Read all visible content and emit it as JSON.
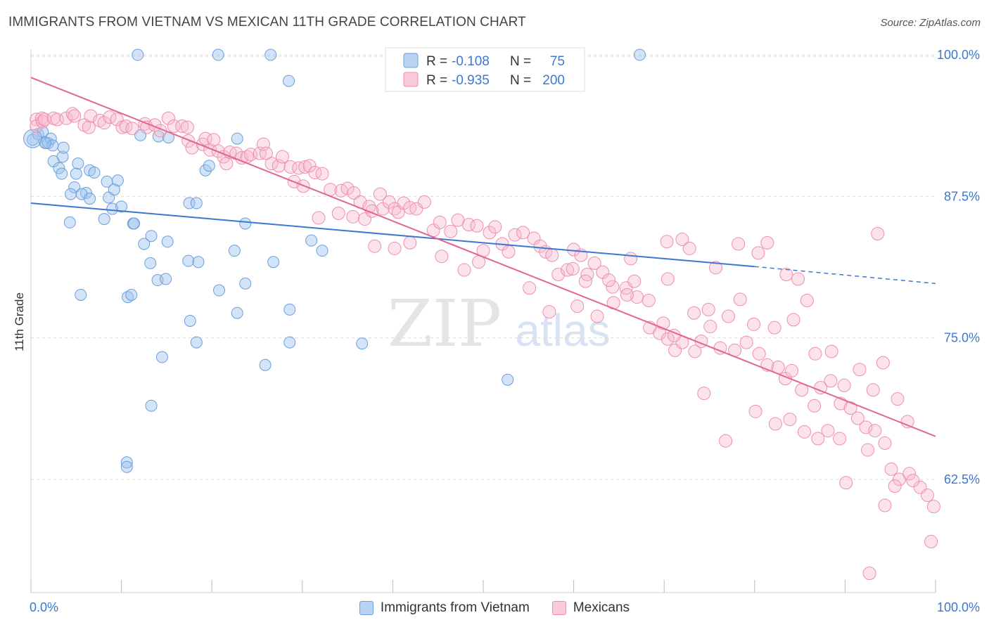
{
  "title": "IMMIGRANTS FROM VIETNAM VS MEXICAN 11TH GRADE CORRELATION CHART",
  "source": "Source: ZipAtlas.com",
  "watermark": {
    "zip": "ZIP",
    "atlas": "atlas"
  },
  "colors": {
    "vietnam_fill": "#9ec4f0",
    "vietnam_stroke": "#6d9fd8",
    "vietnam_line": "#3b78cf",
    "mexican_fill": "#f7b9cd",
    "mexican_stroke": "#ec8faf",
    "mexican_line": "#e36492",
    "tick_label": "#3b78cf",
    "grid": "#dcdcdc"
  },
  "legend": {
    "vietnam": {
      "r_label": "R =",
      "r_value": "-0.108",
      "n_label": "N =",
      "n_value": "75"
    },
    "mexican": {
      "r_label": "R =",
      "r_value": "-0.935",
      "n_label": "N =",
      "n_value": "200"
    }
  },
  "chart_data": {
    "type": "scatter",
    "title": "IMMIGRANTS FROM VIETNAM VS MEXICAN 11TH GRADE CORRELATION CHART",
    "xlabel": "",
    "ylabel": "11th Grade",
    "xlim": [
      0,
      100
    ],
    "ylim": [
      52.5,
      100.5
    ],
    "x_tick_labels": [
      "0.0%",
      "100.0%"
    ],
    "y_ticks": [
      62.5,
      75.0,
      87.5,
      100.0
    ],
    "y_tick_labels": [
      "62.5%",
      "75.0%",
      "87.5%",
      "100.0%"
    ],
    "grid": "horizontal dashed",
    "legend_position": "top-center",
    "series": [
      {
        "name": "Immigrants from Vietnam",
        "color": "#9ec4f0",
        "points": [
          [
            11.8,
            100
          ],
          [
            20.7,
            100
          ],
          [
            26.5,
            100
          ],
          [
            67.3,
            100
          ],
          [
            28.5,
            97.7
          ],
          [
            0.2,
            92.5
          ],
          [
            0.8,
            93.0
          ],
          [
            1.3,
            93.2
          ],
          [
            1.5,
            92.3
          ],
          [
            1.9,
            92.2
          ],
          [
            2.2,
            92.6
          ],
          [
            2.4,
            92.0
          ],
          [
            3.5,
            91.0
          ],
          [
            2.5,
            90.6
          ],
          [
            3.1,
            90.0
          ],
          [
            3.4,
            89.5
          ],
          [
            5.2,
            90.4
          ],
          [
            5.0,
            89.5
          ],
          [
            6.5,
            89.8
          ],
          [
            7.0,
            89.6
          ],
          [
            8.4,
            88.8
          ],
          [
            9.6,
            88.9
          ],
          [
            4.8,
            88.3
          ],
          [
            6.1,
            87.8
          ],
          [
            4.4,
            87.7
          ],
          [
            5.6,
            87.7
          ],
          [
            8.6,
            87.4
          ],
          [
            9.2,
            88.1
          ],
          [
            6.5,
            87.3
          ],
          [
            1.6,
            92.2
          ],
          [
            3.6,
            91.8
          ],
          [
            9.0,
            86.4
          ],
          [
            10.0,
            86.6
          ],
          [
            4.3,
            85.2
          ],
          [
            8.1,
            85.5
          ],
          [
            11.3,
            85.1
          ],
          [
            11.4,
            85.1
          ],
          [
            17.5,
            86.9
          ],
          [
            18.3,
            86.9
          ],
          [
            19.3,
            89.8
          ],
          [
            19.7,
            90.2
          ],
          [
            12.1,
            92.9
          ],
          [
            14.1,
            92.8
          ],
          [
            15.2,
            92.7
          ],
          [
            22.8,
            92.6
          ],
          [
            12.5,
            83.3
          ],
          [
            13.3,
            84.0
          ],
          [
            15.1,
            83.5
          ],
          [
            22.5,
            82.7
          ],
          [
            23.7,
            85.1
          ],
          [
            31.0,
            83.6
          ],
          [
            32.2,
            82.7
          ],
          [
            17.4,
            81.8
          ],
          [
            18.5,
            81.7
          ],
          [
            14.0,
            80.1
          ],
          [
            14.9,
            80.2
          ],
          [
            13.2,
            81.6
          ],
          [
            23.7,
            79.8
          ],
          [
            26.8,
            81.7
          ],
          [
            5.5,
            78.8
          ],
          [
            10.7,
            78.6
          ],
          [
            11.1,
            78.8
          ],
          [
            20.8,
            79.2
          ],
          [
            17.6,
            76.5
          ],
          [
            28.6,
            77.5
          ],
          [
            22.8,
            77.2
          ],
          [
            18.3,
            74.6
          ],
          [
            28.6,
            74.6
          ],
          [
            36.6,
            74.5
          ],
          [
            14.5,
            73.3
          ],
          [
            25.9,
            72.6
          ],
          [
            13.3,
            69.0
          ],
          [
            10.6,
            64.0
          ],
          [
            10.6,
            63.6
          ],
          [
            52.7,
            71.3
          ]
        ]
      },
      {
        "name": "Mexicans",
        "color": "#f7b9cd",
        "points": [
          [
            0.6,
            94.3
          ],
          [
            0.6,
            93.7
          ],
          [
            1.2,
            94.4
          ],
          [
            1.3,
            94.1
          ],
          [
            1.5,
            94.3
          ],
          [
            2.5,
            94.4
          ],
          [
            2.9,
            94.3
          ],
          [
            3.9,
            94.4
          ],
          [
            4.6,
            94.8
          ],
          [
            4.8,
            94.6
          ],
          [
            5.9,
            93.8
          ],
          [
            6.4,
            93.6
          ],
          [
            6.6,
            94.6
          ],
          [
            7.6,
            94.2
          ],
          [
            8.1,
            94.0
          ],
          [
            8.7,
            94.5
          ],
          [
            9.5,
            94.3
          ],
          [
            10.1,
            93.6
          ],
          [
            10.5,
            93.7
          ],
          [
            11.2,
            93.5
          ],
          [
            12.6,
            93.9
          ],
          [
            12.8,
            93.6
          ],
          [
            13.7,
            93.8
          ],
          [
            14.3,
            93.3
          ],
          [
            15.2,
            94.4
          ],
          [
            15.8,
            93.7
          ],
          [
            16.7,
            93.7
          ],
          [
            17.3,
            93.6
          ],
          [
            17.4,
            92.4
          ],
          [
            17.8,
            91.8
          ],
          [
            19.0,
            92.1
          ],
          [
            19.3,
            92.6
          ],
          [
            19.8,
            91.6
          ],
          [
            20.2,
            92.5
          ],
          [
            20.7,
            91.5
          ],
          [
            21.3,
            91.0
          ],
          [
            21.6,
            90.4
          ],
          [
            22.0,
            91.4
          ],
          [
            22.7,
            91.3
          ],
          [
            23.3,
            90.9
          ],
          [
            23.9,
            91.0
          ],
          [
            24.3,
            91.2
          ],
          [
            25.3,
            91.3
          ],
          [
            25.7,
            92.1
          ],
          [
            26.0,
            91.3
          ],
          [
            26.6,
            90.4
          ],
          [
            27.4,
            90.2
          ],
          [
            27.8,
            91.0
          ],
          [
            28.7,
            90.1
          ],
          [
            29.6,
            90.0
          ],
          [
            30.3,
            90.1
          ],
          [
            30.8,
            90.2
          ],
          [
            29.1,
            88.8
          ],
          [
            30.1,
            88.4
          ],
          [
            31.4,
            89.6
          ],
          [
            32.2,
            89.5
          ],
          [
            33.1,
            88.1
          ],
          [
            34.3,
            88.0
          ],
          [
            35.0,
            88.2
          ],
          [
            35.7,
            87.8
          ],
          [
            36.4,
            87.0
          ],
          [
            37.4,
            86.6
          ],
          [
            38.6,
            87.7
          ],
          [
            38.9,
            86.4
          ],
          [
            39.6,
            87.0
          ],
          [
            40.2,
            86.4
          ],
          [
            40.6,
            86.1
          ],
          [
            41.2,
            86.9
          ],
          [
            41.9,
            86.5
          ],
          [
            42.6,
            86.4
          ],
          [
            43.5,
            87.0
          ],
          [
            44.5,
            84.5
          ],
          [
            45.2,
            85.2
          ],
          [
            46.4,
            84.4
          ],
          [
            47.2,
            85.4
          ],
          [
            48.4,
            85.0
          ],
          [
            49.3,
            84.9
          ],
          [
            50.0,
            82.7
          ],
          [
            50.7,
            84.3
          ],
          [
            51.3,
            84.8
          ],
          [
            52.1,
            83.3
          ],
          [
            52.8,
            82.6
          ],
          [
            53.5,
            84.1
          ],
          [
            54.4,
            84.3
          ],
          [
            55.6,
            83.8
          ],
          [
            56.3,
            83.1
          ],
          [
            56.9,
            82.6
          ],
          [
            57.6,
            82.3
          ],
          [
            58.3,
            80.6
          ],
          [
            59.3,
            81.0
          ],
          [
            60.0,
            82.8
          ],
          [
            60.8,
            82.3
          ],
          [
            61.5,
            80.6
          ],
          [
            62.3,
            81.6
          ],
          [
            63.2,
            80.8
          ],
          [
            64.3,
            79.5
          ],
          [
            65.8,
            79.4
          ],
          [
            66.7,
            80.0
          ],
          [
            67.0,
            78.6
          ],
          [
            68.4,
            75.9
          ],
          [
            69.5,
            75.4
          ],
          [
            70.4,
            74.9
          ],
          [
            71.2,
            73.9
          ],
          [
            72.0,
            74.6
          ],
          [
            73.4,
            73.8
          ],
          [
            74.1,
            74.7
          ],
          [
            75.1,
            76.0
          ],
          [
            76.2,
            74.1
          ],
          [
            77.8,
            73.9
          ],
          [
            79.1,
            74.6
          ],
          [
            80.5,
            73.6
          ],
          [
            81.4,
            72.6
          ],
          [
            82.6,
            72.4
          ],
          [
            83.4,
            71.4
          ],
          [
            84.1,
            72.1
          ],
          [
            85.2,
            70.4
          ],
          [
            86.6,
            69.0
          ],
          [
            87.3,
            70.6
          ],
          [
            88.4,
            71.2
          ],
          [
            89.5,
            69.2
          ],
          [
            90.6,
            68.8
          ],
          [
            91.4,
            67.9
          ],
          [
            92.3,
            67.1
          ],
          [
            93.3,
            66.8
          ],
          [
            94.4,
            65.7
          ],
          [
            95.1,
            63.4
          ],
          [
            96.0,
            62.5
          ],
          [
            97.1,
            63.0
          ],
          [
            98.3,
            61.8
          ],
          [
            99.1,
            61.1
          ],
          [
            99.8,
            60.1
          ],
          [
            99.5,
            57.0
          ],
          [
            92.7,
            54.2
          ],
          [
            64.4,
            78.1
          ],
          [
            65.9,
            78.8
          ],
          [
            55.1,
            79.4
          ],
          [
            57.3,
            77.3
          ],
          [
            60.4,
            77.8
          ],
          [
            62.6,
            76.9
          ],
          [
            68.3,
            78.3
          ],
          [
            69.9,
            76.3
          ],
          [
            71.1,
            75.2
          ],
          [
            73.3,
            77.2
          ],
          [
            74.9,
            77.5
          ],
          [
            77.1,
            76.9
          ],
          [
            78.4,
            78.4
          ],
          [
            79.9,
            76.2
          ],
          [
            82.2,
            75.9
          ],
          [
            84.3,
            76.6
          ],
          [
            86.7,
            73.6
          ],
          [
            88.5,
            73.8
          ],
          [
            89.9,
            70.8
          ],
          [
            91.6,
            72.2
          ],
          [
            93.1,
            70.4
          ],
          [
            94.2,
            72.8
          ],
          [
            95.8,
            69.6
          ],
          [
            96.9,
            67.6
          ],
          [
            74.4,
            70.1
          ],
          [
            76.8,
            65.9
          ],
          [
            80.1,
            68.5
          ],
          [
            82.3,
            67.4
          ],
          [
            83.9,
            67.8
          ],
          [
            85.5,
            66.7
          ],
          [
            87.0,
            66.1
          ],
          [
            88.1,
            66.8
          ],
          [
            89.4,
            66.1
          ],
          [
            90.1,
            62.2
          ],
          [
            92.5,
            65.1
          ],
          [
            94.4,
            60.2
          ],
          [
            95.5,
            61.9
          ],
          [
            97.5,
            62.4
          ],
          [
            80.4,
            82.5
          ],
          [
            83.5,
            80.6
          ],
          [
            84.8,
            80.2
          ],
          [
            85.8,
            78.3
          ],
          [
            70.3,
            83.5
          ],
          [
            72.0,
            83.7
          ],
          [
            78.2,
            83.3
          ],
          [
            81.4,
            83.4
          ],
          [
            93.6,
            84.2
          ],
          [
            38.0,
            83.1
          ],
          [
            40.2,
            82.9
          ],
          [
            41.9,
            83.4
          ],
          [
            45.4,
            82.2
          ],
          [
            47.9,
            81.0
          ],
          [
            49.5,
            81.7
          ],
          [
            59.9,
            81.1
          ],
          [
            61.3,
            80.0
          ],
          [
            63.9,
            80.1
          ],
          [
            66.3,
            82.0
          ],
          [
            70.4,
            80.2
          ],
          [
            72.8,
            82.9
          ],
          [
            75.7,
            81.2
          ],
          [
            31.8,
            85.6
          ],
          [
            34.0,
            86.0
          ],
          [
            35.6,
            85.7
          ],
          [
            36.9,
            85.5
          ],
          [
            37.7,
            86.2
          ]
        ]
      }
    ],
    "trendlines": [
      {
        "series": "Immigrants from Vietnam",
        "x": [
          0,
          80
        ],
        "y": [
          86.9,
          81.3
        ],
        "dashed_extension_to": [
          100,
          79.8
        ]
      },
      {
        "series": "Mexicans",
        "x": [
          0,
          100
        ],
        "y": [
          98.0,
          66.3
        ]
      }
    ]
  },
  "bottom_legend": [
    {
      "label": "Immigrants from Vietnam"
    },
    {
      "label": "Mexicans"
    }
  ]
}
